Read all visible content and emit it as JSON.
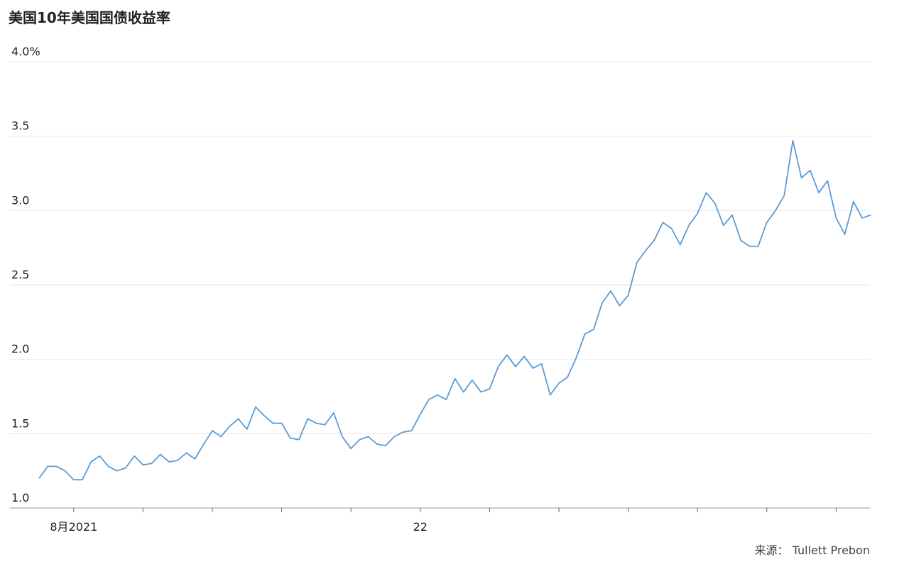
{
  "chart_data": {
    "type": "line",
    "title": "美国10年美国国债收益率",
    "source": "来源： Tullett Prebon",
    "categories": [
      null,
      null,
      null,
      null,
      "8月2021",
      null,
      null,
      null,
      null,
      null,
      null,
      null,
      null,
      null,
      null,
      null,
      null,
      null,
      null,
      null,
      null,
      null,
      null,
      null,
      null,
      null,
      null,
      null,
      null,
      null,
      null,
      null,
      null,
      null,
      null,
      null,
      null,
      null,
      null,
      null,
      null,
      null,
      null,
      null,
      "22",
      null,
      null,
      null,
      null,
      null,
      null,
      null,
      null,
      null,
      null,
      null,
      null,
      null,
      null,
      null,
      null,
      null,
      null,
      null,
      null,
      null,
      null,
      null,
      null,
      null,
      null,
      null,
      null,
      null,
      null,
      null,
      null,
      null,
      null,
      null,
      null,
      null,
      null,
      null,
      null,
      null,
      null,
      null,
      null,
      null,
      null,
      null,
      null,
      null,
      null,
      null,
      null
    ],
    "values": [
      1.2,
      1.28,
      1.28,
      1.25,
      1.19,
      1.19,
      1.31,
      1.35,
      1.28,
      1.25,
      1.27,
      1.35,
      1.29,
      1.3,
      1.36,
      1.31,
      1.32,
      1.37,
      1.33,
      1.43,
      1.52,
      1.48,
      1.55,
      1.6,
      1.53,
      1.68,
      1.62,
      1.57,
      1.57,
      1.47,
      1.46,
      1.6,
      1.57,
      1.56,
      1.64,
      1.48,
      1.4,
      1.46,
      1.48,
      1.43,
      1.42,
      1.48,
      1.51,
      1.52,
      1.63,
      1.73,
      1.76,
      1.73,
      1.87,
      1.78,
      1.86,
      1.78,
      1.8,
      1.95,
      2.03,
      1.95,
      2.02,
      1.94,
      1.97,
      1.76,
      1.84,
      1.88,
      2.01,
      2.17,
      2.2,
      2.38,
      2.46,
      2.36,
      2.43,
      2.65,
      2.73,
      2.8,
      2.92,
      2.88,
      2.77,
      2.9,
      2.98,
      3.12,
      3.05,
      2.9,
      2.97,
      2.8,
      2.76,
      2.76,
      2.92,
      3.0,
      3.1,
      3.47,
      3.22,
      3.27,
      3.12,
      3.2,
      2.95,
      2.84,
      3.06,
      2.95,
      2.97
    ],
    "color": "#5b9bd5",
    "ylim": [
      1,
      4
    ],
    "yticks": [
      {
        "value": 4,
        "label": "4.0%"
      },
      3.5,
      {
        "value": 3,
        "label": "3.0"
      },
      2.5,
      {
        "value": 2,
        "label": "2.0"
      },
      1.5,
      {
        "value": 1,
        "label": "1.0"
      }
    ],
    "grid": true
  }
}
